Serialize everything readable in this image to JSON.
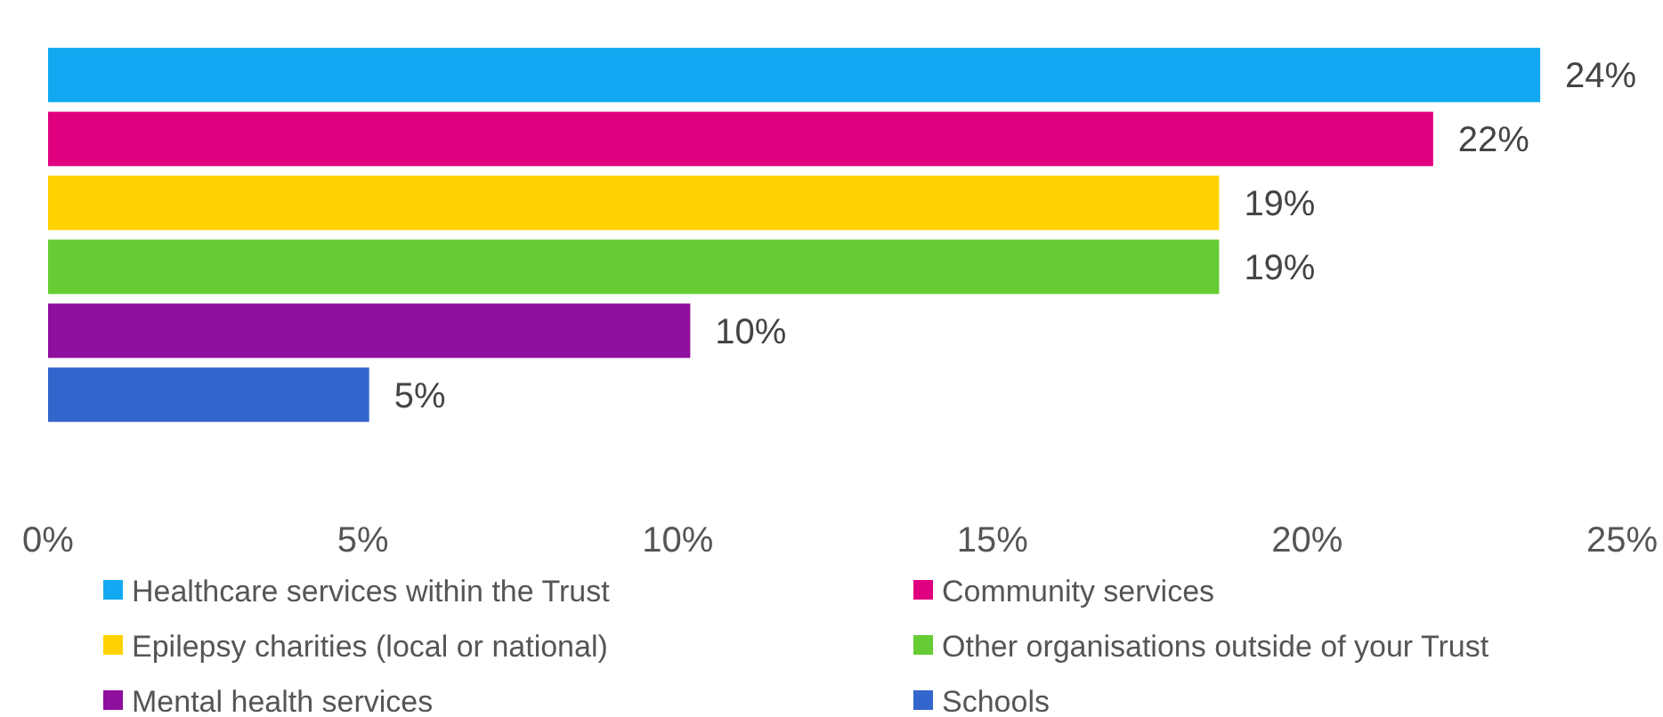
{
  "chart_data": {
    "type": "bar",
    "orientation": "horizontal",
    "categories": [
      null
    ],
    "series": [
      {
        "name": "Healthcare services within the Trust",
        "color": "#12a9f2",
        "values": [
          23.7
        ],
        "value_labels": [
          "24%"
        ]
      },
      {
        "name": "Community services",
        "color": "#e0007f",
        "values": [
          22.0
        ],
        "value_labels": [
          "22%"
        ]
      },
      {
        "name": "Epilepsy charities (local or national)",
        "color": "#ffd200",
        "values": [
          18.6
        ],
        "value_labels": [
          "19%"
        ]
      },
      {
        "name": "Other organisations outside of your Trust",
        "color": "#66cc33",
        "values": [
          18.6
        ],
        "value_labels": [
          "19%"
        ]
      },
      {
        "name": "Mental health services",
        "color": "#8e0f9e",
        "values": [
          10.2
        ],
        "value_labels": [
          "10%"
        ]
      },
      {
        "name": "Schools",
        "color": "#3366cc",
        "values": [
          5.1
        ],
        "value_labels": [
          "5%"
        ]
      }
    ],
    "xlim": [
      0,
      25
    ],
    "xticks": [
      {
        "value": 0,
        "label": "0%"
      },
      {
        "value": 5,
        "label": "5%"
      },
      {
        "value": 10,
        "label": "10%"
      },
      {
        "value": 15,
        "label": "15%"
      },
      {
        "value": 20,
        "label": "20%"
      },
      {
        "value": 25,
        "label": "25%"
      }
    ],
    "grid": false,
    "legend": "bottom"
  }
}
